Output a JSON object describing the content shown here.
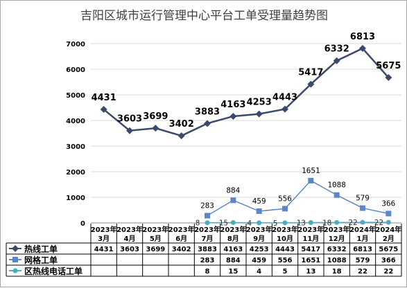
{
  "chart_data": {
    "type": "line",
    "title": "吉阳区城市运行管理中心平台工单受理量趋势图",
    "categories": [
      [
        "2023年",
        "3月"
      ],
      [
        "2023年",
        "4月"
      ],
      [
        "2023年",
        "5月"
      ],
      [
        "2023年",
        "6月"
      ],
      [
        "2023年",
        "7月"
      ],
      [
        "2023年",
        "8月"
      ],
      [
        "2023年",
        "9月"
      ],
      [
        "2023年",
        "10月"
      ],
      [
        "2023年",
        "11月"
      ],
      [
        "2023年",
        "12月"
      ],
      [
        "2024年",
        "1月"
      ],
      [
        "2024年",
        "2月"
      ]
    ],
    "yticks": [
      0,
      1000,
      2000,
      3000,
      4000,
      5000,
      6000,
      7000
    ],
    "ylim": [
      0,
      7000
    ],
    "grid": true,
    "legend_position": "data-table-bottom",
    "series": [
      {
        "name": "热线工单",
        "color": "#3b4a6b",
        "marker": "diamond",
        "values": [
          4431,
          3603,
          3699,
          3402,
          3883,
          4163,
          4253,
          4443,
          5417,
          6332,
          6813,
          5675
        ]
      },
      {
        "name": "网格工单",
        "color": "#5b87c5",
        "marker": "square",
        "values": [
          null,
          null,
          null,
          null,
          283,
          884,
          459,
          556,
          1651,
          1088,
          579,
          366
        ]
      },
      {
        "name": "区热线电话工单",
        "color": "#4bacc6",
        "marker": "circle",
        "values": [
          null,
          null,
          null,
          null,
          8,
          15,
          4,
          5,
          13,
          18,
          22,
          22
        ]
      }
    ]
  }
}
